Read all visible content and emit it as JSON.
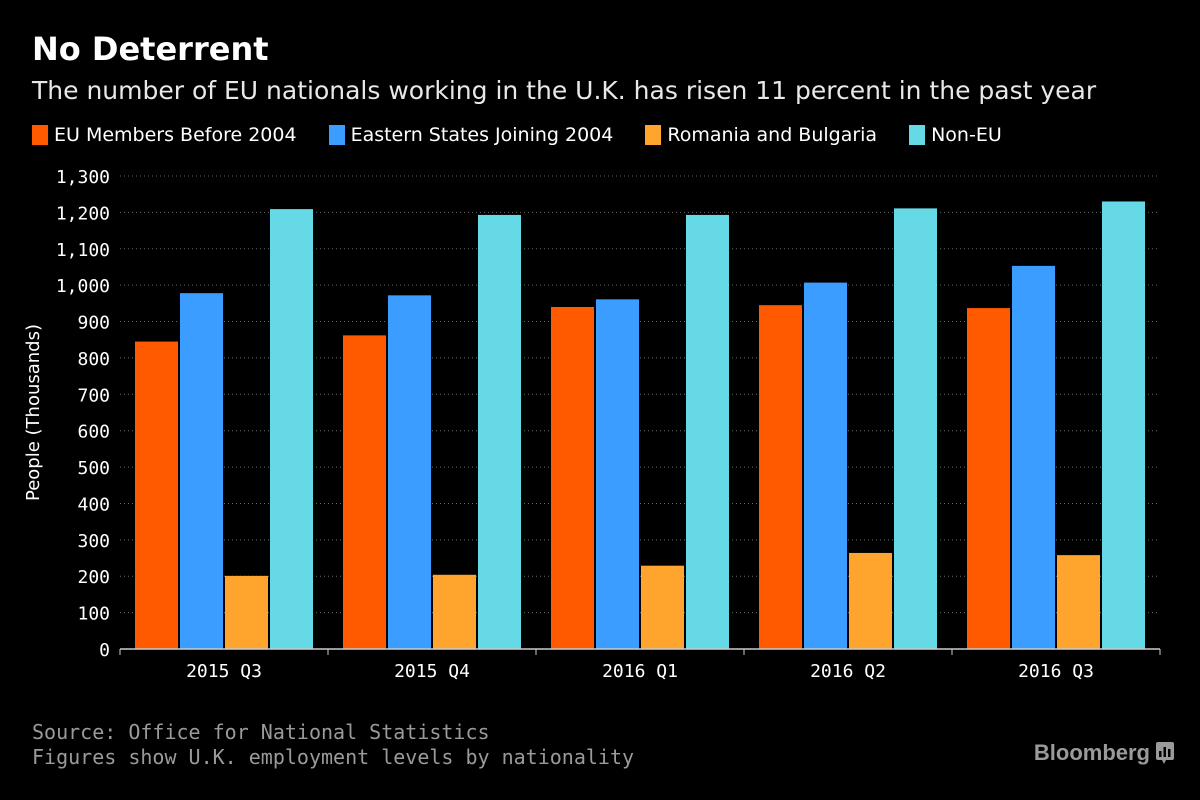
{
  "header": {
    "title": "No Deterrent",
    "subtitle": "The number of EU nationals working in the U.K. has risen 11 percent in the past year"
  },
  "legend": [
    {
      "label": "EU Members Before 2004",
      "color": "#ff5a00"
    },
    {
      "label": "Eastern States Joining 2004",
      "color": "#3b9dff"
    },
    {
      "label": "Romania and Bulgaria",
      "color": "#ffa42c"
    },
    {
      "label": "Non-EU",
      "color": "#66d9e6"
    }
  ],
  "chart_data": {
    "type": "bar",
    "ylabel": "People (Thousands)",
    "xlabel": "",
    "ylim": [
      0,
      1300
    ],
    "yticks": [
      0,
      100,
      200,
      300,
      400,
      500,
      600,
      700,
      800,
      900,
      1000,
      1100,
      1200,
      1300
    ],
    "ytick_labels": [
      "0",
      "100",
      "200",
      "300",
      "400",
      "500",
      "600",
      "700",
      "800",
      "900",
      "1,000",
      "1,100",
      "1,200",
      "1,300"
    ],
    "grid": true,
    "legend_position": "top-left",
    "categories": [
      "2015 Q3",
      "2015 Q4",
      "2016 Q1",
      "2016 Q2",
      "2016 Q3"
    ],
    "series": [
      {
        "name": "EU Members Before 2004",
        "color": "#ff5a00",
        "values": [
          845,
          862,
          940,
          945,
          937
        ]
      },
      {
        "name": "Eastern States Joining 2004",
        "color": "#3b9dff",
        "values": [
          978,
          972,
          961,
          1007,
          1053
        ]
      },
      {
        "name": "Romania and Bulgaria",
        "color": "#ffa42c",
        "values": [
          201,
          204,
          229,
          264,
          258
        ]
      },
      {
        "name": "Non-EU",
        "color": "#66d9e6",
        "values": [
          1209,
          1193,
          1193,
          1211,
          1230
        ]
      }
    ]
  },
  "footer": {
    "source": "Source: Office for National Statistics",
    "note": "Figures show U.K. employment levels by nationality",
    "brand": "Bloomberg"
  }
}
